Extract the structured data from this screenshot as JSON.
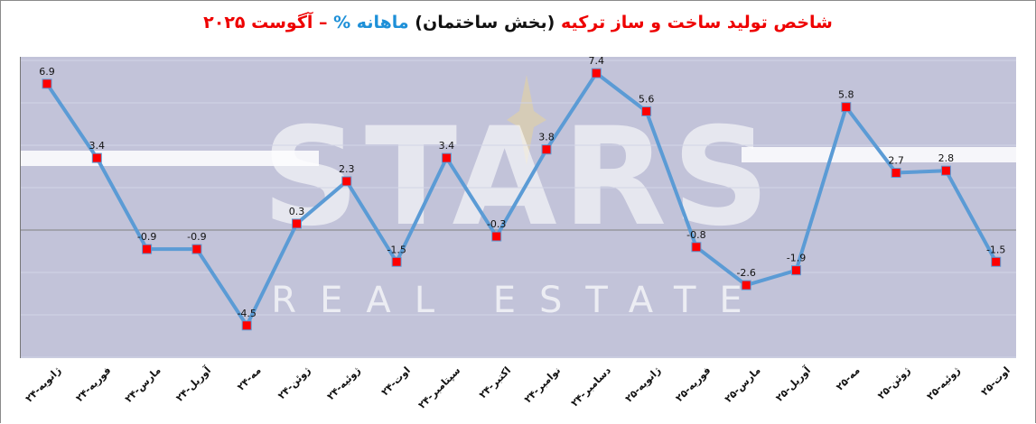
{
  "title": {
    "part1": "شاخص تولید ساخت و ساز ترکیه",
    "part2": "(بخش ساختمان)",
    "part3": "ماهانه %",
    "part4": "– آگوست ۲۰۲۵"
  },
  "colors": {
    "line": "#5b9bd5",
    "marker": "#ff0000",
    "marker_border": "#5b9bd5",
    "plot_bg": "#c2c3d9",
    "title_red": "#ee0000",
    "title_blue": "#1e90d8",
    "zero_line": "#808080"
  },
  "watermark": {
    "main": "STARS",
    "sub": "REAL ESTATE"
  },
  "chart_data": {
    "type": "line",
    "title": "شاخص تولید ساخت و ساز ترکیه (بخش ساختمان) ماهانه % – آگوست ۲۰۲۵",
    "xlabel": "",
    "ylabel": "",
    "categories": [
      "ژانویه-۲۴",
      "فوریه-۲۴",
      "مارس-۲۴",
      "آوریل-۲۴",
      "مه-۲۴",
      "ژوئن-۲۴",
      "ژوئیه-۲۴",
      "اوت-۲۴",
      "سپتامبر-۲۴",
      "اکتبر-۲۴",
      "نوامبر-۲۴",
      "دسامبر-۲۴",
      "ژانویه-۲۵",
      "فوریه-۲۵",
      "مارس-۲۵",
      "آوریل-۲۵",
      "مه-۲۵",
      "ژوئن-۲۵",
      "ژوئیه-۲۵",
      "اوت-۲۵"
    ],
    "series": [
      {
        "name": "ماهانه %",
        "values": [
          6.9,
          3.4,
          -0.9,
          -0.9,
          -4.5,
          0.3,
          2.3,
          -1.5,
          3.4,
          -0.3,
          3.8,
          7.4,
          5.6,
          -0.8,
          -2.6,
          -1.9,
          5.8,
          2.7,
          2.8,
          -1.5
        ]
      }
    ],
    "data_labels": [
      "6.9",
      "3.4",
      "-0.9",
      "-0.9",
      "-4.5",
      "0.3",
      "2.3",
      "-1.5",
      "3.4",
      "-0.3",
      "3.8",
      "7.4",
      "5.6",
      "-0.8",
      "-2.6",
      "-1.9",
      "5.8",
      "2.7",
      "2.8",
      "-1.5"
    ],
    "ylim": [
      -6,
      8
    ],
    "grid": true,
    "legend": "none",
    "marker": "square"
  }
}
